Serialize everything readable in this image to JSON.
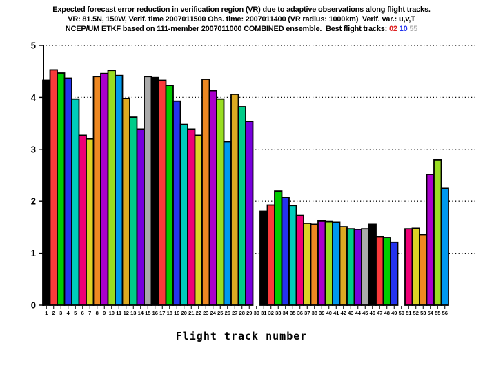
{
  "header": {
    "line1": "Expected forecast error reduction in verification region (VR) due to adaptive observations along flight tracks.",
    "line2": "VR: 81.5N, 150W, Verif. time 2007011500 Obs. time: 2007011400 (VR radius: 1000km)  Verif. var.: u,v,T",
    "line3_prefix": "NCEP/UM ETKF based on 111-member 2007011000 COMBINED ensemble.  Best flight tracks: ",
    "best_tracks": [
      {
        "label": "02",
        "color": "#dd2222"
      },
      {
        "label": "10",
        "color": "#2233ee"
      },
      {
        "label": "55",
        "color": "#aaaaaa"
      }
    ]
  },
  "chart_data": {
    "type": "bar",
    "xlabel": "Flight track number",
    "ylim": [
      0,
      5
    ],
    "yticks": [
      0,
      1,
      2,
      3,
      4,
      5
    ],
    "grid": "dotted-horizontal",
    "legend": "none",
    "categories": [
      "1",
      "2",
      "3",
      "4",
      "5",
      "6",
      "7",
      "8",
      "9",
      "10",
      "11",
      "12",
      "13",
      "14",
      "15",
      "16",
      "17",
      "18",
      "19",
      "20",
      "21",
      "22",
      "23",
      "24",
      "25",
      "26",
      "27",
      "28",
      "29",
      "30",
      "31",
      "32",
      "33",
      "34",
      "35",
      "36",
      "37",
      "38",
      "39",
      "40",
      "41",
      "42",
      "43",
      "44",
      "45",
      "46",
      "47",
      "48",
      "49",
      "50",
      "51",
      "52",
      "53",
      "54",
      "55",
      "56"
    ],
    "values": [
      4.33,
      4.53,
      4.47,
      4.37,
      3.97,
      3.27,
      3.2,
      4.4,
      4.46,
      4.52,
      4.42,
      3.98,
      3.62,
      3.39,
      4.4,
      4.38,
      4.33,
      4.23,
      3.93,
      3.48,
      3.39,
      3.27,
      4.35,
      4.13,
      3.97,
      3.15,
      4.06,
      3.82,
      3.54,
      0,
      1.81,
      1.93,
      2.2,
      2.07,
      1.92,
      1.73,
      1.58,
      1.56,
      1.62,
      1.61,
      1.6,
      1.51,
      1.47,
      1.46,
      1.47,
      1.56,
      1.32,
      1.3,
      1.21,
      0,
      1.47,
      1.48,
      1.36,
      2.52,
      2.8,
      2.25
    ],
    "color_cycle": [
      "#000000",
      "#f93b3b",
      "#00cc00",
      "#2433ee",
      "#00ccbb",
      "#ee0077",
      "#ddd226",
      "#ee8822",
      "#aa00cc",
      "#99dd22",
      "#0099ee",
      "#ddaa22",
      "#00cc88",
      "#7700dd",
      "#aaaaaa"
    ],
    "bar_outline_color": "#000000"
  }
}
